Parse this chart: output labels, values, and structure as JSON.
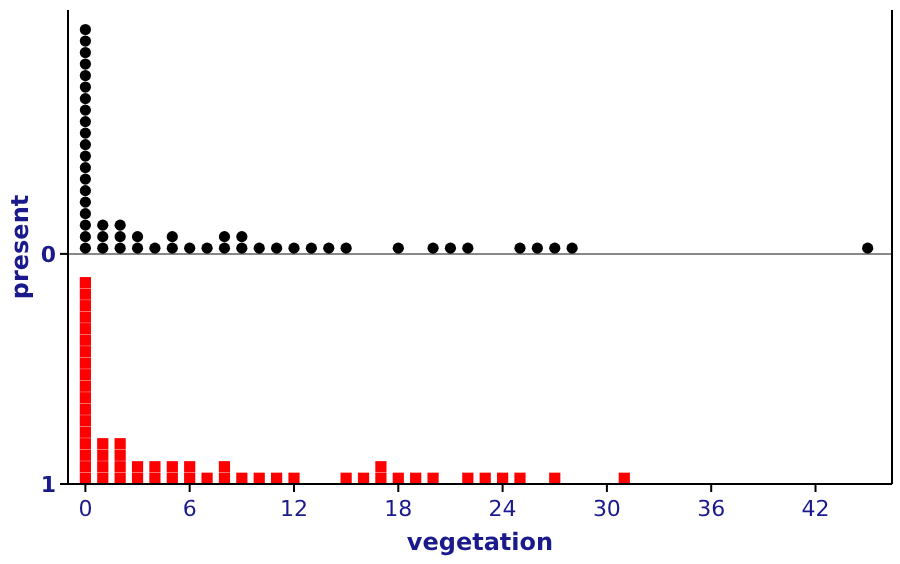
{
  "chart_data": {
    "type": "scatter",
    "xlabel": "vegetation",
    "ylabel": "present",
    "xlim": [
      -1,
      46.4
    ],
    "xticks": [
      0,
      6,
      12,
      18,
      24,
      30,
      36,
      42
    ],
    "ylim": [
      1,
      -1.06
    ],
    "yticks": [
      0,
      1
    ],
    "ref_lines": [
      {
        "axis": "y",
        "value": 0,
        "color": "#888888"
      }
    ],
    "series": [
      {
        "color": "#000000",
        "marker": "circle",
        "x": [
          0,
          0,
          0,
          0,
          0,
          0,
          0,
          0,
          0,
          0,
          0,
          0,
          0,
          0,
          0,
          0,
          0,
          0,
          0,
          0,
          1,
          1,
          1,
          2,
          2,
          2,
          3,
          3,
          4,
          5,
          5,
          6,
          7,
          8,
          8,
          9,
          9,
          10,
          11,
          12,
          13,
          14,
          15,
          18,
          20,
          21,
          22,
          25,
          26,
          27,
          28,
          45
        ],
        "values": [
          -0.025,
          -0.075,
          -0.125,
          -0.175,
          -0.225,
          -0.275,
          -0.325,
          -0.375,
          -0.425,
          -0.475,
          -0.525,
          -0.575,
          -0.625,
          -0.675,
          -0.725,
          -0.775,
          -0.825,
          -0.875,
          -0.925,
          -0.975,
          -0.025,
          -0.075,
          -0.125,
          -0.025,
          -0.075,
          -0.125,
          -0.025,
          -0.075,
          -0.025,
          -0.025,
          -0.075,
          -0.025,
          -0.025,
          -0.025,
          -0.075,
          -0.025,
          -0.075,
          -0.025,
          -0.025,
          -0.025,
          -0.025,
          -0.025,
          -0.025,
          -0.025,
          -0.025,
          -0.025,
          -0.025,
          -0.025,
          -0.025,
          -0.025,
          -0.025,
          -0.025
        ]
      },
      {
        "color": "#ff0000",
        "marker": "square",
        "x": [
          0,
          0,
          0,
          0,
          0,
          0,
          0,
          0,
          0,
          0,
          0,
          0,
          0,
          0,
          0,
          0,
          0,
          0,
          1,
          1,
          1,
          1,
          2,
          2,
          2,
          2,
          3,
          3,
          4,
          4,
          5,
          5,
          6,
          6,
          7,
          8,
          8,
          9,
          10,
          11,
          12,
          15,
          16,
          17,
          17,
          18,
          19,
          20,
          22,
          23,
          24,
          25,
          27,
          31
        ],
        "values": [
          0.975,
          0.925,
          0.875,
          0.825,
          0.775,
          0.725,
          0.675,
          0.625,
          0.575,
          0.525,
          0.475,
          0.425,
          0.375,
          0.325,
          0.275,
          0.225,
          0.175,
          0.125,
          0.975,
          0.925,
          0.875,
          0.825,
          0.975,
          0.925,
          0.875,
          0.825,
          0.975,
          0.925,
          0.975,
          0.925,
          0.975,
          0.925,
          0.975,
          0.925,
          0.975,
          0.975,
          0.925,
          0.975,
          0.975,
          0.975,
          0.975,
          0.975,
          0.975,
          0.975,
          0.925,
          0.975,
          0.975,
          0.975,
          0.975,
          0.975,
          0.975,
          0.975,
          0.975,
          0.975
        ]
      }
    ]
  }
}
